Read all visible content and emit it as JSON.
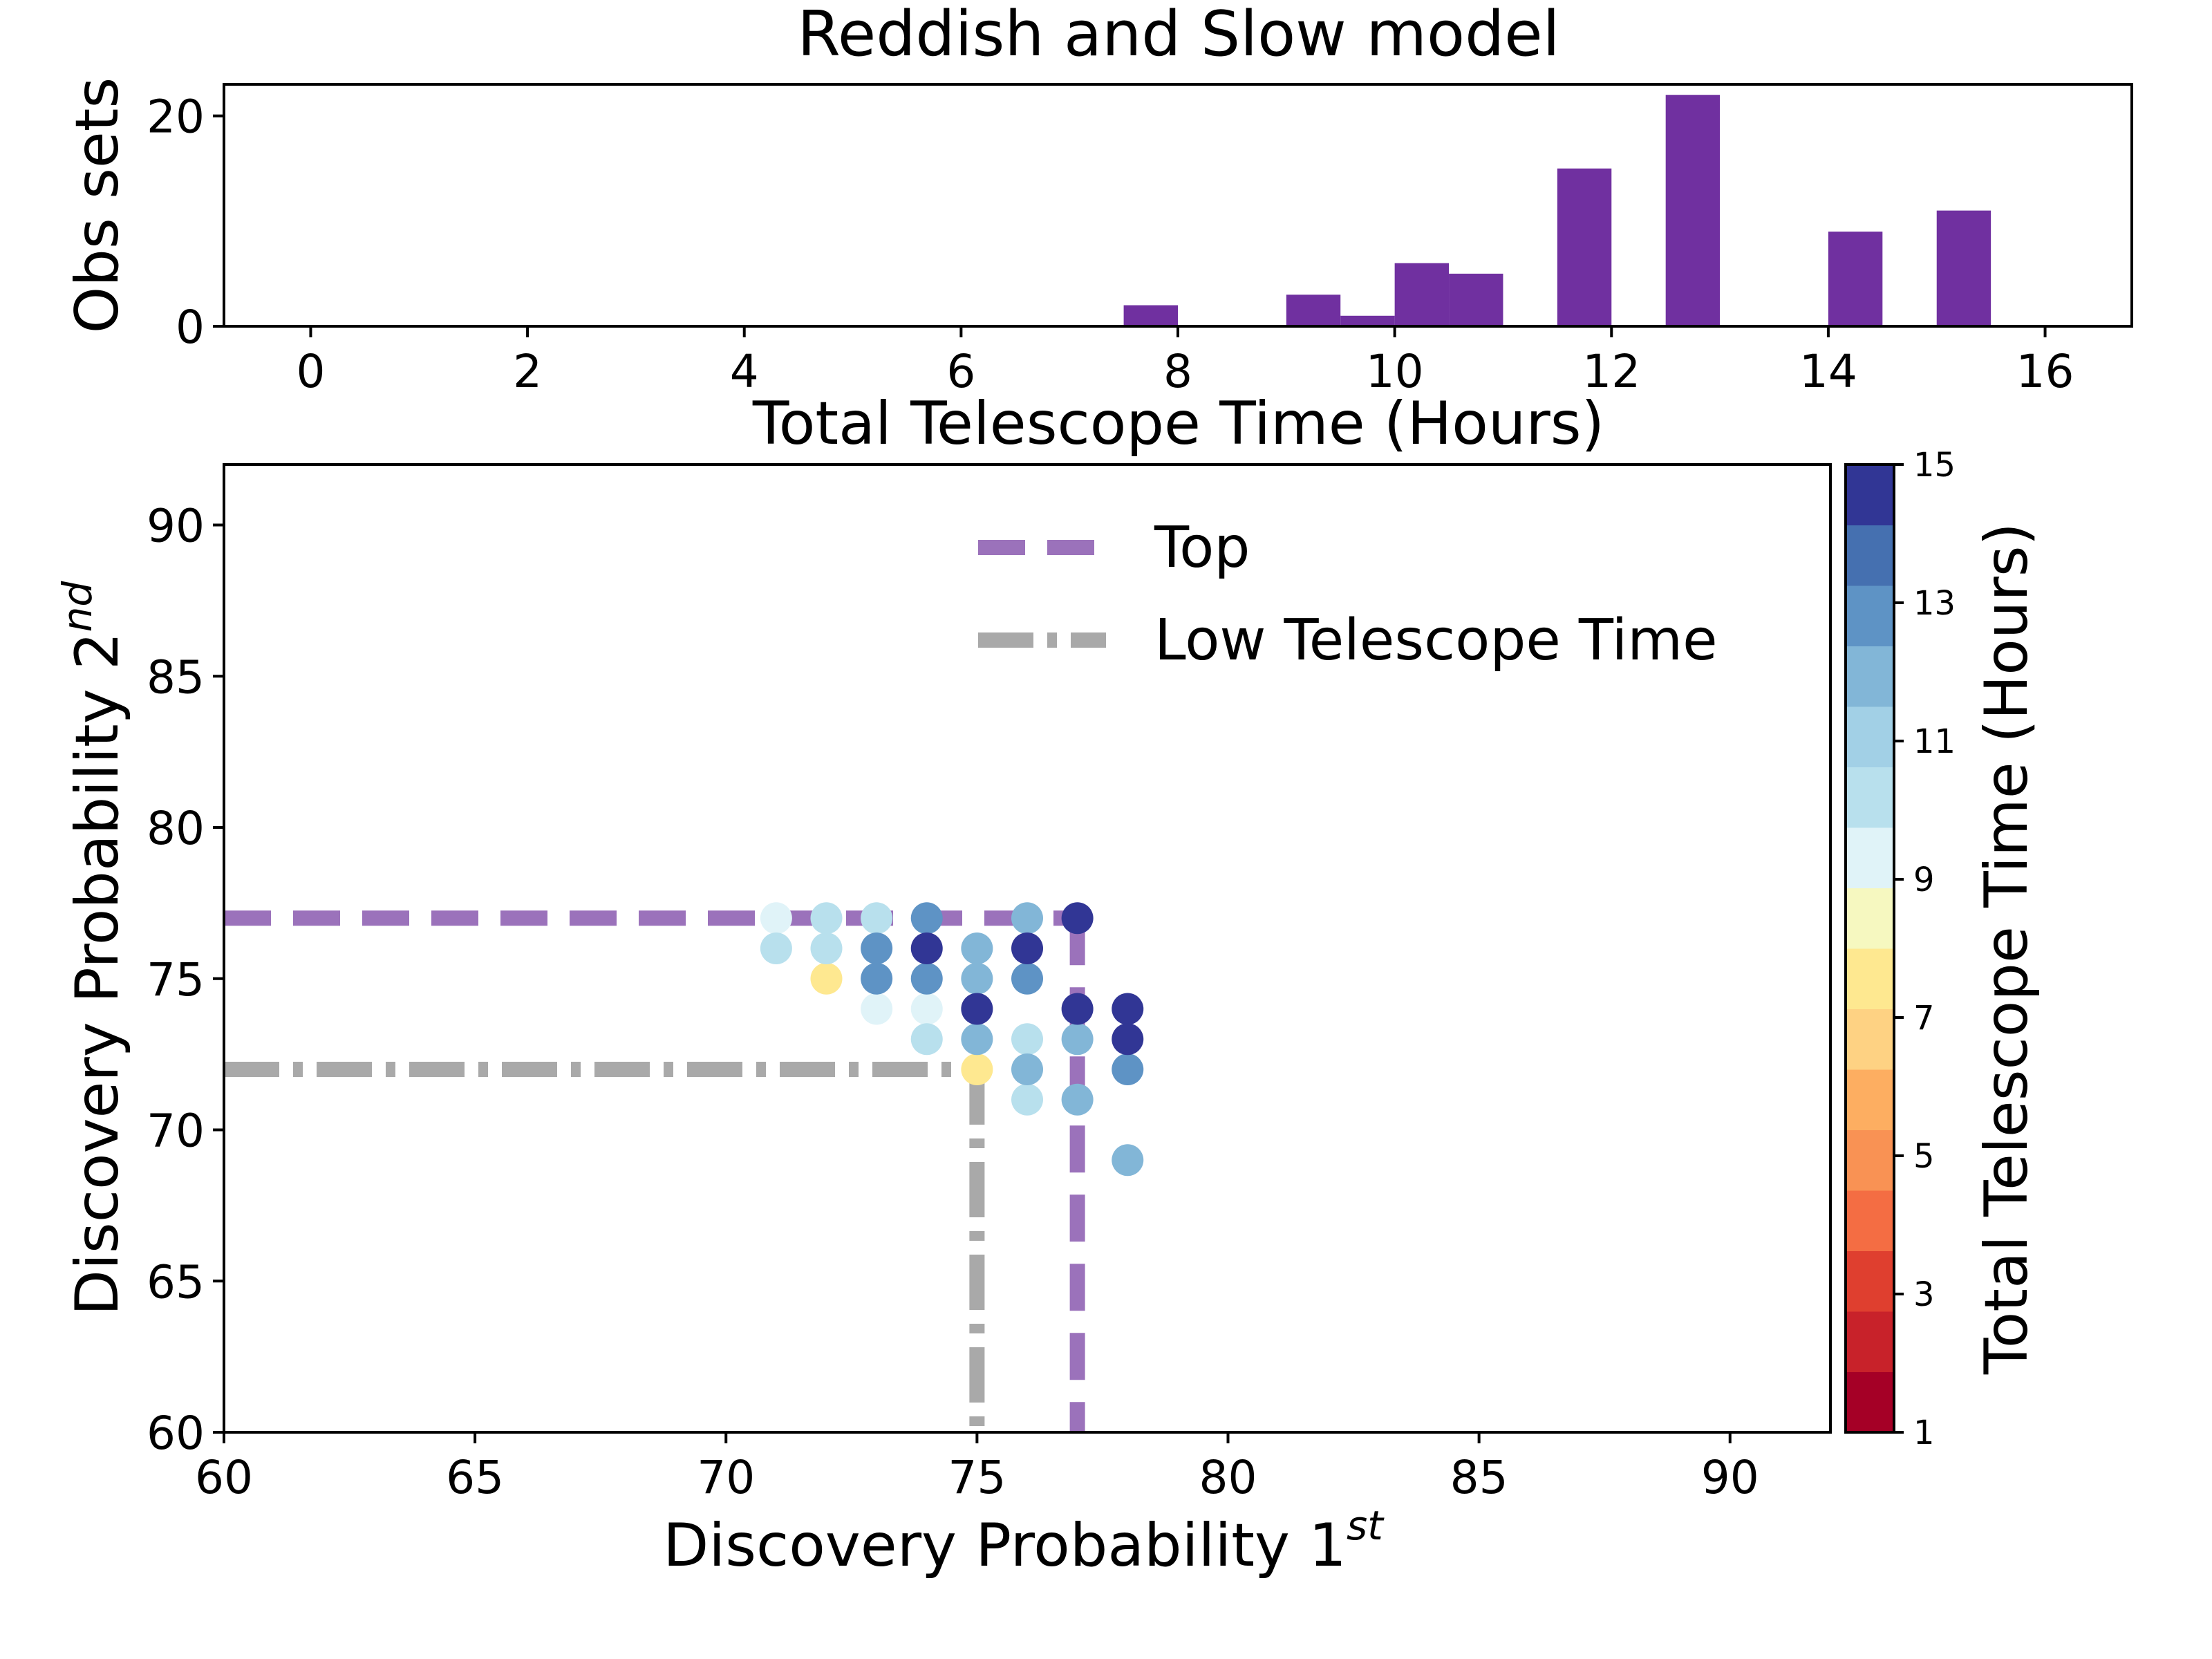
{
  "chart_data": [
    {
      "type": "bar",
      "title": "Reddish and Slow model",
      "xlabel": "Total Telescope Time (Hours)",
      "ylabel": "Obs sets",
      "xlim": [
        -0.8,
        16.8
      ],
      "ylim": [
        0,
        23
      ],
      "x_ticks": [
        0,
        2,
        4,
        6,
        8,
        10,
        12,
        14,
        16
      ],
      "y_ticks": [
        0,
        20
      ],
      "bar_color": "#7030a0",
      "bins": [
        {
          "start": 7.5,
          "end": 8.0,
          "value": 2
        },
        {
          "start": 9.0,
          "end": 9.5,
          "value": 3
        },
        {
          "start": 9.5,
          "end": 10.0,
          "value": 1
        },
        {
          "start": 10.0,
          "end": 10.5,
          "value": 6
        },
        {
          "start": 10.5,
          "end": 11.0,
          "value": 5
        },
        {
          "start": 11.5,
          "end": 12.0,
          "value": 15
        },
        {
          "start": 12.5,
          "end": 13.0,
          "value": 22
        },
        {
          "start": 14.0,
          "end": 14.5,
          "value": 9
        },
        {
          "start": 15.0,
          "end": 15.5,
          "value": 11
        }
      ]
    },
    {
      "type": "scatter",
      "xlabel": "Discovery Probability 1",
      "xlabel_sup": "st",
      "ylabel": "Discovery Probability 2",
      "ylabel_sup": "nd",
      "xlim": [
        60,
        92
      ],
      "ylim": [
        60,
        92
      ],
      "x_ticks": [
        60,
        65,
        70,
        75,
        80,
        85,
        90
      ],
      "y_ticks": [
        60,
        65,
        70,
        75,
        80,
        85,
        90
      ],
      "colorbar": {
        "label": "Total Telescope Time (Hours)",
        "range": [
          1,
          15
        ],
        "ticks": [
          1,
          3,
          5,
          7,
          9,
          11,
          13,
          15
        ],
        "colors": [
          "#a50026",
          "#c8222a",
          "#df3f2f",
          "#f46d43",
          "#f99254",
          "#fdae61",
          "#fed283",
          "#fee890",
          "#f6f8c0",
          "#e0f3f8",
          "#b8e0ed",
          "#a2d0e6",
          "#82b6d7",
          "#5e93c5",
          "#4570b0",
          "#313695"
        ]
      },
      "points": [
        {
          "x": 71,
          "y": 77,
          "t": 9.5
        },
        {
          "x": 71,
          "y": 76,
          "t": 10.5
        },
        {
          "x": 72,
          "y": 77,
          "t": 10.5
        },
        {
          "x": 72,
          "y": 76,
          "t": 10.0
        },
        {
          "x": 72,
          "y": 75,
          "t": 7.5
        },
        {
          "x": 73,
          "y": 77,
          "t": 10.5
        },
        {
          "x": 73,
          "y": 76,
          "t": 12.5
        },
        {
          "x": 73,
          "y": 75,
          "t": 12.5
        },
        {
          "x": 73,
          "y": 74,
          "t": 9.5
        },
        {
          "x": 74,
          "y": 77,
          "t": 12.5
        },
        {
          "x": 74,
          "y": 76,
          "t": 14.5
        },
        {
          "x": 74,
          "y": 75,
          "t": 12.5
        },
        {
          "x": 74,
          "y": 74,
          "t": 9.5
        },
        {
          "x": 74,
          "y": 73,
          "t": 10.5
        },
        {
          "x": 75,
          "y": 76,
          "t": 12.0
        },
        {
          "x": 75,
          "y": 75,
          "t": 12.0
        },
        {
          "x": 75,
          "y": 74,
          "t": 14.5
        },
        {
          "x": 75,
          "y": 73,
          "t": 11.5
        },
        {
          "x": 75,
          "y": 72,
          "t": 7.5
        },
        {
          "x": 76,
          "y": 77,
          "t": 12.0
        },
        {
          "x": 76,
          "y": 76,
          "t": 14.5
        },
        {
          "x": 76,
          "y": 75,
          "t": 12.5
        },
        {
          "x": 76,
          "y": 73,
          "t": 10.5
        },
        {
          "x": 76,
          "y": 72,
          "t": 11.5
        },
        {
          "x": 76,
          "y": 71,
          "t": 10.5
        },
        {
          "x": 77,
          "y": 77,
          "t": 15.0
        },
        {
          "x": 77,
          "y": 74,
          "t": 15.0
        },
        {
          "x": 77,
          "y": 73,
          "t": 11.5
        },
        {
          "x": 77,
          "y": 71,
          "t": 11.5
        },
        {
          "x": 78,
          "y": 74,
          "t": 14.5
        },
        {
          "x": 78,
          "y": 73,
          "t": 14.5
        },
        {
          "x": 78,
          "y": 72,
          "t": 12.5
        },
        {
          "x": 78,
          "y": 69,
          "t": 11.5
        }
      ],
      "reference_lines": [
        {
          "name": "Top",
          "x": 77,
          "y": 77,
          "color": "#9b72bb",
          "style": "dashed"
        },
        {
          "name": "Low Telescope Time",
          "x": 75,
          "y": 72,
          "color": "#a9a9a9",
          "style": "dashdot"
        }
      ],
      "legend": [
        "Top",
        "Low Telescope Time"
      ]
    }
  ]
}
